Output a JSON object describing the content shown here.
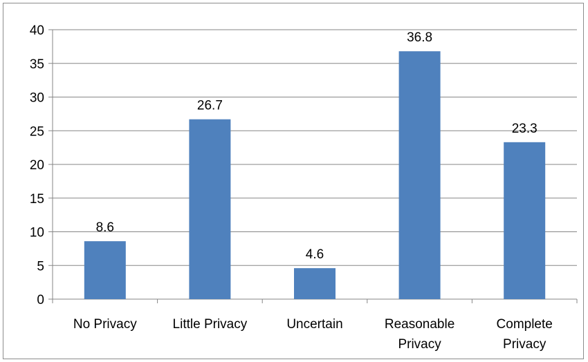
{
  "chart_data": {
    "type": "bar",
    "categories": [
      "No Privacy",
      "Little Privacy",
      "Uncertain",
      "Reasonable Privacy",
      "Complete Privacy"
    ],
    "category_lines": [
      [
        "No Privacy"
      ],
      [
        "Little Privacy"
      ],
      [
        "Uncertain"
      ],
      [
        "Reasonable",
        "Privacy"
      ],
      [
        "Complete",
        "Privacy"
      ]
    ],
    "values": [
      8.6,
      26.7,
      4.6,
      36.8,
      23.3
    ],
    "data_labels": [
      "8.6",
      "26.7",
      "4.6",
      "36.8",
      "23.3"
    ],
    "ylim": [
      0,
      40
    ],
    "yticks": [
      0,
      5,
      10,
      15,
      20,
      25,
      30,
      35,
      40
    ],
    "grid": true,
    "bar_color": "#4f81bd",
    "grid_color": "#868686",
    "axis_color": "#868686"
  }
}
